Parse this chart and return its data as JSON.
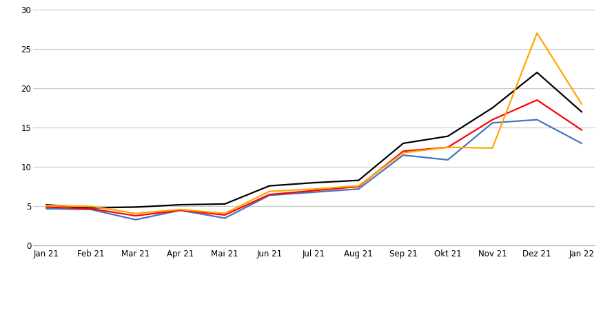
{
  "x_labels": [
    "Jan 21",
    "Feb 21",
    "Mar 21",
    "Apr 21",
    "Mai 21",
    "Jun 21",
    "Jul 21",
    "Aug 21",
    "Sep 21",
    "Okt 21",
    "Nov 21",
    "Dez 21",
    "Jan 22"
  ],
  "series": {
    "Spotmarktpreis": [
      5.2,
      4.8,
      4.9,
      5.2,
      5.3,
      7.6,
      8.0,
      8.3,
      13.0,
      13.9,
      17.5,
      22.0,
      17.0
    ],
    "Marktwert Wind Onshore": [
      4.7,
      4.6,
      3.3,
      4.5,
      3.5,
      6.4,
      6.8,
      7.2,
      11.5,
      10.9,
      15.6,
      16.0,
      13.0
    ],
    "Marktwert Wind offshore": [
      4.9,
      4.7,
      3.8,
      4.5,
      3.9,
      6.5,
      7.0,
      7.5,
      12.0,
      12.5,
      16.0,
      18.5,
      14.7
    ],
    "Marktwert Solar": [
      5.1,
      5.0,
      4.1,
      4.6,
      4.1,
      6.9,
      7.2,
      7.6,
      11.8,
      12.5,
      12.4,
      27.0,
      18.0
    ]
  },
  "colors": {
    "Spotmarktpreis": "#000000",
    "Marktwert Wind Onshore": "#4472C4",
    "Marktwert Wind offshore": "#FF0000",
    "Marktwert Solar": "#FFA500"
  },
  "ylim": [
    0,
    30
  ],
  "yticks": [
    0,
    5,
    10,
    15,
    20,
    25,
    30
  ],
  "background_color": "#ffffff",
  "grid_color": "#c8c8c8",
  "linewidth": 1.6,
  "legend_fontsize": 8.5,
  "tick_fontsize": 8.5
}
